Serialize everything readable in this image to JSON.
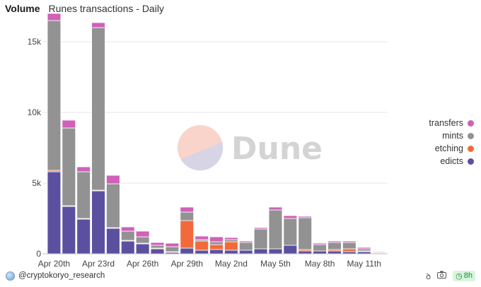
{
  "header": {
    "title": "Volume",
    "subtitle": "Runes transactions - Daily"
  },
  "watermark": {
    "text": "Dune"
  },
  "footer": {
    "credit": "@cryptokoryo_research",
    "refresh_badge": "8h"
  },
  "colors": {
    "edicts": "#5b50a0",
    "etching": "#f26a3c",
    "mints": "#929292",
    "transfers": "#d060b8",
    "grid": "#e6e6e6"
  },
  "chart_data": {
    "type": "bar",
    "stacked": true,
    "title": "Runes transactions - Daily",
    "xlabel": "",
    "ylabel": "",
    "ylim": [
      0,
      17000
    ],
    "yticks": [
      {
        "value": 0,
        "label": "0"
      },
      {
        "value": 5000,
        "label": "5k"
      },
      {
        "value": 10000,
        "label": "10k"
      },
      {
        "value": 15000,
        "label": "15k"
      }
    ],
    "categories": [
      "Apr 20",
      "Apr 21",
      "Apr 22",
      "Apr 23",
      "Apr 24",
      "Apr 25",
      "Apr 26",
      "Apr 27",
      "Apr 28",
      "Apr 29",
      "Apr 30",
      "May 1",
      "May 2",
      "May 3",
      "May 4",
      "May 5",
      "May 6",
      "May 7",
      "May 8",
      "May 9",
      "May 10",
      "May 11",
      "May 12"
    ],
    "xtick_labels": [
      {
        "index": 0,
        "label": "Apr 20th"
      },
      {
        "index": 3,
        "label": "Apr 23rd"
      },
      {
        "index": 6,
        "label": "Apr 26th"
      },
      {
        "index": 9,
        "label": "Apr 29th"
      },
      {
        "index": 12,
        "label": "May 2nd"
      },
      {
        "index": 15,
        "label": "May 5th"
      },
      {
        "index": 18,
        "label": "May 8th"
      },
      {
        "index": 21,
        "label": "May 11th"
      }
    ],
    "series": [
      {
        "name": "edicts",
        "values": [
          5800,
          3350,
          2450,
          4450,
          1800,
          900,
          700,
          350,
          100,
          400,
          250,
          300,
          250,
          250,
          350,
          350,
          600,
          200,
          200,
          200,
          150,
          150,
          50
        ]
      },
      {
        "name": "etching",
        "values": [
          100,
          50,
          50,
          50,
          50,
          50,
          50,
          50,
          50,
          1950,
          650,
          350,
          600,
          0,
          0,
          0,
          0,
          100,
          0,
          100,
          200,
          50,
          0
        ]
      },
      {
        "name": "mints",
        "values": [
          10600,
          5500,
          3300,
          11500,
          3100,
          650,
          450,
          200,
          350,
          600,
          100,
          200,
          150,
          550,
          1400,
          2750,
          1900,
          2250,
          450,
          500,
          450,
          150,
          50
        ]
      },
      {
        "name": "transfers",
        "values": [
          500,
          550,
          350,
          350,
          600,
          300,
          400,
          200,
          250,
          350,
          250,
          350,
          150,
          100,
          100,
          200,
          200,
          100,
          100,
          100,
          100,
          100,
          50
        ]
      }
    ],
    "legend": {
      "position": "right",
      "entries": [
        "transfers",
        "mints",
        "etching",
        "edicts"
      ]
    }
  }
}
